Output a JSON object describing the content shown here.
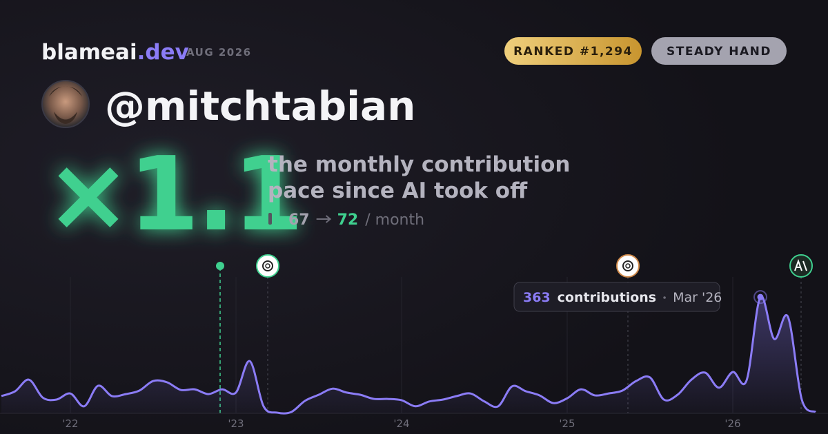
{
  "header": {
    "brand": "blameai",
    "brand_suffix": ".dev",
    "period": "AUG 2026",
    "badges": [
      "RANKED #1,294",
      "STEADY HAND"
    ],
    "username": "@mitchtabian"
  },
  "headline": {
    "multiplier": "×1.1",
    "description": [
      "the monthly contribution",
      "pace since AI took off"
    ],
    "before": 67,
    "after": 72,
    "unit": "/ month"
  },
  "chart_data": {
    "type": "line",
    "color": "#8b7cf6",
    "categories": [
      null,
      null,
      null,
      null,
      null,
      "'22",
      null,
      null,
      null,
      null,
      null,
      null,
      null,
      null,
      null,
      null,
      null,
      "'23",
      null,
      null,
      null,
      null,
      null,
      null,
      null,
      null,
      null,
      null,
      null,
      "'24",
      null,
      null,
      null,
      null,
      null,
      null,
      null,
      null,
      null,
      null,
      null,
      "'25",
      null,
      null,
      null,
      null,
      null,
      null,
      null,
      null,
      null,
      null,
      null,
      "'26",
      null,
      null,
      null,
      null,
      null,
      null
    ],
    "values": [
      54,
      69,
      105,
      49,
      43,
      62,
      22,
      86,
      54,
      60,
      71,
      101,
      97,
      73,
      75,
      60,
      75,
      65,
      163,
      22,
      2,
      4,
      39,
      58,
      77,
      65,
      58,
      45,
      45,
      41,
      22,
      37,
      43,
      54,
      62,
      37,
      22,
      84,
      69,
      56,
      32,
      47,
      75,
      56,
      62,
      71,
      101,
      112,
      43,
      58,
      105,
      127,
      80,
      129,
      103,
      363,
      232,
      301,
      43,
      4
    ],
    "ylim": [
      0,
      430
    ],
    "grid": true,
    "tooltip": {
      "unit": "contributions",
      "date": "Mar '26"
    }
  }
}
